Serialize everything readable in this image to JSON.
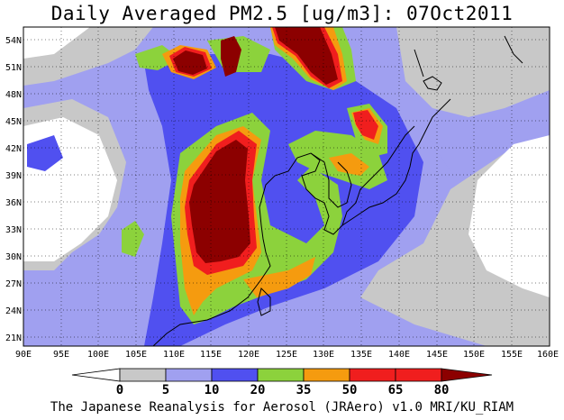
{
  "title": "Daily Averaged PM2.5 [ug/m3]: 07Oct2011",
  "footer": "The Japanese Reanalysis for Aerosol (JRAero) v1.0 MRI/KU_RIAM",
  "map": {
    "lon_range": [
      90,
      160
    ],
    "lat_range": [
      19.5,
      55
    ],
    "lon_ticks": [
      "90E",
      "95E",
      "100E",
      "105E",
      "110E",
      "115E",
      "120E",
      "125E",
      "130E",
      "135E",
      "140E",
      "145E",
      "150E",
      "155E",
      "160E"
    ],
    "lat_ticks": [
      "21N",
      "24N",
      "27N",
      "30N",
      "33N",
      "36N",
      "39N",
      "42N",
      "45N",
      "48N",
      "51N",
      "54N"
    ],
    "grid": "dotted"
  },
  "colorbar": {
    "levels": [
      "0",
      "5",
      "10",
      "20",
      "35",
      "50",
      "65",
      "80"
    ],
    "colors": [
      "#ffffff",
      "#c8c8c8",
      "#a0a0f0",
      "#5050f0",
      "#8cd23c",
      "#f59b0f",
      "#f01e1e",
      "#8c0000"
    ]
  }
}
